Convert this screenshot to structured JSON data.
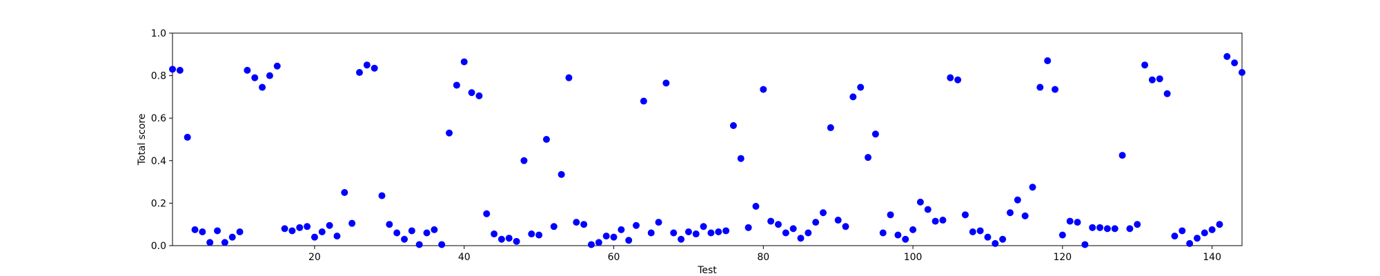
{
  "chart_data": {
    "type": "scatter",
    "title": "",
    "xlabel": "Test",
    "ylabel": "Total score",
    "xlim": [
      1,
      144
    ],
    "ylim": [
      0,
      1.0
    ],
    "xticks": [
      20,
      40,
      60,
      80,
      100,
      120,
      140
    ],
    "yticks": [
      0.0,
      0.2,
      0.4,
      0.6,
      0.8,
      1.0
    ],
    "ytick_labels": [
      "0.0",
      "0.2",
      "0.4",
      "0.6",
      "0.8",
      "1.0"
    ],
    "grid": false,
    "marker_color": "#0000ff",
    "series": [
      {
        "x": [
          1,
          2,
          3,
          4,
          5,
          6,
          7,
          8,
          9,
          10,
          11,
          12,
          13,
          14,
          15,
          16,
          17,
          18,
          19,
          20,
          21,
          22,
          23,
          24,
          25,
          26,
          27,
          28,
          29,
          30,
          31,
          32,
          33,
          34,
          35,
          36,
          37,
          38,
          39,
          40,
          41,
          42,
          43,
          44,
          45,
          46,
          47,
          48,
          49,
          50,
          51,
          52,
          53,
          54,
          55,
          56,
          57,
          58,
          59,
          60,
          61,
          62,
          63,
          64,
          65,
          66,
          67,
          68,
          69,
          70,
          71,
          72,
          73,
          74,
          75,
          76,
          77,
          78,
          79,
          80,
          81,
          82,
          83,
          84,
          85,
          86,
          87,
          88,
          89,
          90,
          91,
          92,
          93,
          94,
          95,
          96,
          97,
          98,
          99,
          100,
          101,
          102,
          103,
          104,
          105,
          106,
          107,
          108,
          109,
          110,
          111,
          112,
          113,
          114,
          115,
          116,
          117,
          118,
          119,
          120,
          121,
          122,
          123,
          124,
          125,
          126,
          127,
          128,
          129,
          130,
          131,
          132,
          133,
          134,
          135,
          136,
          137,
          138,
          139,
          140,
          141,
          142,
          143,
          144
        ],
        "y": [
          0.83,
          0.825,
          0.51,
          0.075,
          0.065,
          0.015,
          0.07,
          0.015,
          0.04,
          0.065,
          0.825,
          0.79,
          0.745,
          0.8,
          0.845,
          0.08,
          0.07,
          0.085,
          0.09,
          0.04,
          0.065,
          0.095,
          0.045,
          0.25,
          0.105,
          0.815,
          0.85,
          0.835,
          0.235,
          0.1,
          0.06,
          0.03,
          0.07,
          0.005,
          0.06,
          0.075,
          0.005,
          0.53,
          0.755,
          0.865,
          0.72,
          0.705,
          0.15,
          0.055,
          0.03,
          0.035,
          0.02,
          0.4,
          0.055,
          0.05,
          0.5,
          0.09,
          0.335,
          0.79,
          0.11,
          0.1,
          0.005,
          0.015,
          0.045,
          0.04,
          0.075,
          0.025,
          0.095,
          0.68,
          0.06,
          0.11,
          0.765,
          0.06,
          0.03,
          0.065,
          0.055,
          0.09,
          0.06,
          0.065,
          0.07,
          0.565,
          0.41,
          0.085,
          0.185,
          0.735,
          0.115,
          0.1,
          0.06,
          0.08,
          0.035,
          0.06,
          0.11,
          0.155,
          0.555,
          0.12,
          0.09,
          0.7,
          0.745,
          0.415,
          0.525,
          0.06,
          0.145,
          0.05,
          0.03,
          0.075,
          0.205,
          0.17,
          0.115,
          0.12,
          0.79,
          0.78,
          0.145,
          0.065,
          0.07,
          0.04,
          0.01,
          0.03,
          0.155,
          0.215,
          0.14,
          0.275,
          0.745,
          0.87,
          0.735,
          0.05,
          0.115,
          0.11,
          0.005,
          0.085,
          0.085,
          0.08,
          0.08,
          0.425,
          0.08,
          0.1,
          0.85,
          0.78,
          0.785,
          0.715,
          0.045,
          0.07,
          0.01,
          0.035,
          0.06,
          0.075,
          0.1,
          0.89,
          0.86,
          0.815
        ]
      }
    ]
  }
}
